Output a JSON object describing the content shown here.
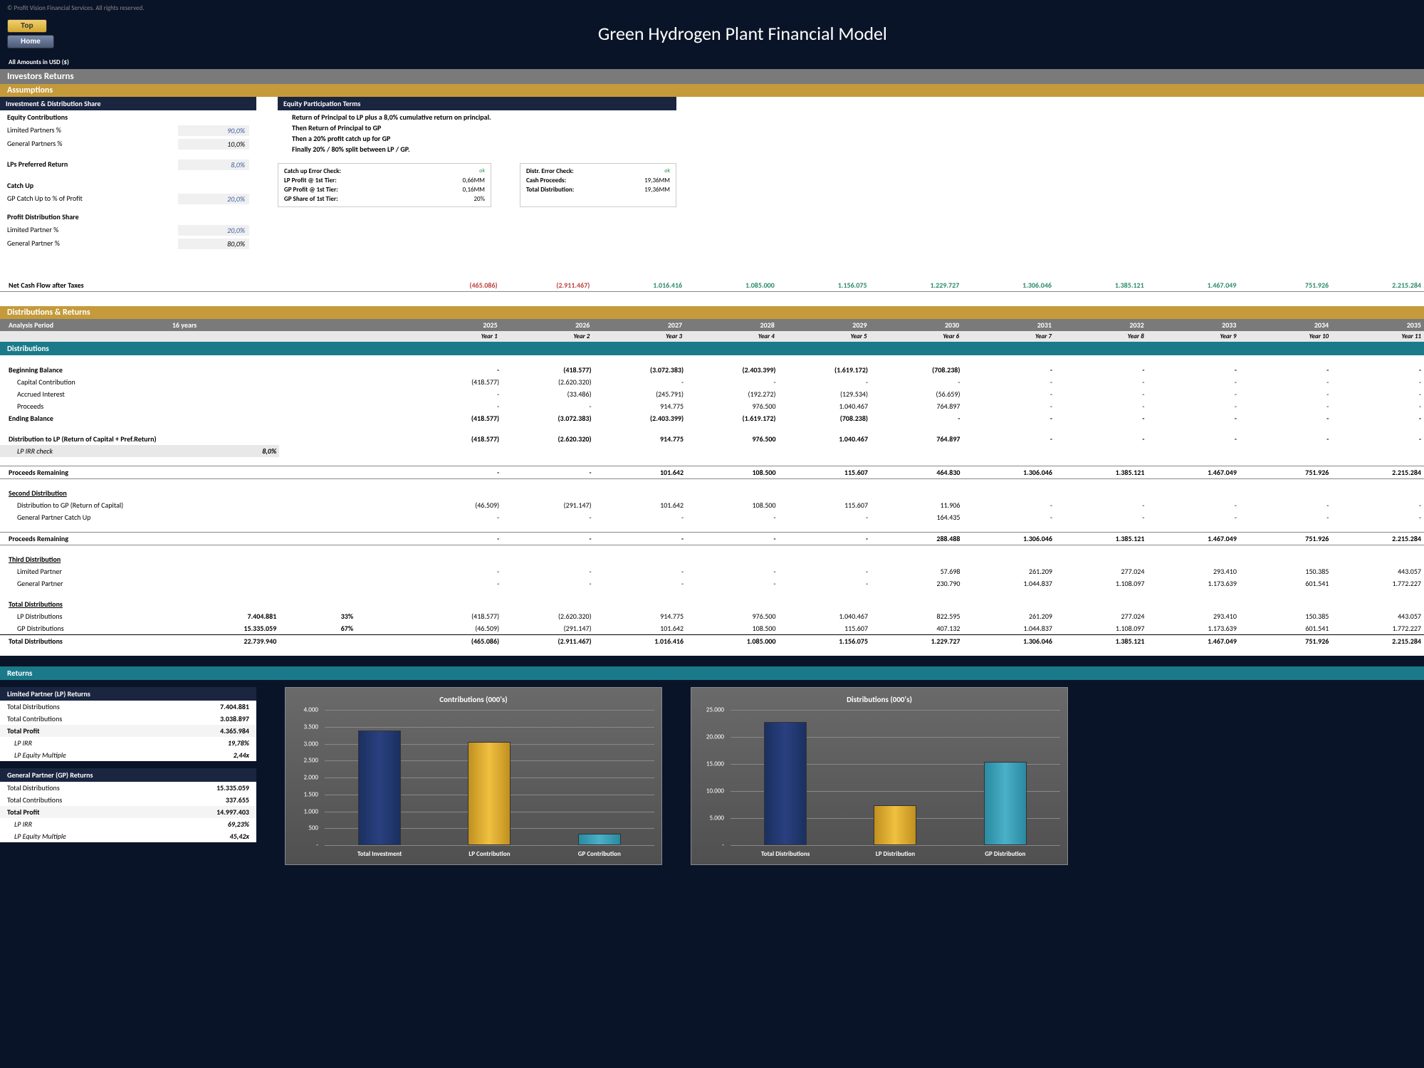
{
  "copyright": "© Profit Vision Financial Services. All rights reserved.",
  "nav": {
    "top": "Top",
    "home": "Home"
  },
  "title": "Green Hydrogen Plant Financial Model",
  "amounts_label": "All Amounts in  USD ($)",
  "section_investors": "Investors Returns",
  "section_assumptions": "Assumptions",
  "inv_dist_share": "Investment & Distribution Share",
  "equity_contrib_head": "Equity Contributions",
  "lp_pct_label": "Limited Partners %",
  "lp_pct_val": "90,0%",
  "gp_pct_label": "General Partners %",
  "gp_pct_val": "10,0%",
  "lp_pref_label": "LPs Preferred Return",
  "lp_pref_val": "8,0%",
  "catchup_head": "Catch Up",
  "gp_catchup_label": "GP Catch Up to % of Profit",
  "gp_catchup_val": "20,0%",
  "profit_dist_head": "Profit Distribution Share",
  "lp_share_label": "Limited Partner %",
  "lp_share_val": "20,0%",
  "gp_share_label": "General Partner %",
  "gp_share_val": "80,0%",
  "equity_terms_head": "Equity Participation Terms",
  "term1": "Return of Principal to LP plus a 8,0% cumulative return on principal.",
  "term2": "Then Return of Principal to GP",
  "term3": "Then a 20% profit catch up for GP",
  "term4": "Finally 20% / 80% split between LP / GP.",
  "check1_head": "Catch up Error Check:",
  "check1_ok": "ok",
  "check1_r1l": "LP Profit @ 1st Tier:",
  "check1_r1v": "0,66MM",
  "check1_r2l": "GP Profit @ 1st Tier:",
  "check1_r2v": "0,16MM",
  "check1_r3l": "GP Share of 1st Tier:",
  "check1_r3v": "20%",
  "check2_head": "Distr. Error Check:",
  "check2_ok": "ok",
  "check2_r1l": "Cash Proceeds:",
  "check2_r1v": "19,36MM",
  "check2_r2l": "Total Distribution:",
  "check2_r2v": "19,36MM",
  "ncf_label": "Net Cash Flow after Taxes",
  "ncf": [
    "(465.086)",
    "(2.911.467)",
    "1.016.416",
    "1.085.000",
    "1.156.075",
    "1.229.727",
    "1.306.046",
    "1.385.121",
    "1.467.049",
    "751.926",
    "2.215.284"
  ],
  "ncf_neg": [
    true,
    true,
    false,
    false,
    false,
    false,
    false,
    false,
    false,
    false,
    false
  ],
  "dist_returns_head": "Distributions & Returns",
  "analysis_period_label": "Analysis Period",
  "analysis_period_val": "16 years",
  "years": [
    "2025",
    "2026",
    "2027",
    "2028",
    "2029",
    "2030",
    "2031",
    "2032",
    "2033",
    "2034",
    "2035"
  ],
  "year_labels": [
    "Year 1",
    "Year 2",
    "Year 3",
    "Year 4",
    "Year 5",
    "Year 6",
    "Year 7",
    "Year 8",
    "Year 9",
    "Year 10",
    "Year 11"
  ],
  "distributions_head": "Distributions",
  "beg_bal_label": "Beginning Balance",
  "beg_bal": [
    "-",
    "(418.577)",
    "(3.072.383)",
    "(2.403.399)",
    "(1.619.172)",
    "(708.238)",
    "-",
    "-",
    "-",
    "-",
    "-"
  ],
  "cap_contrib_label": "Capital Contribution",
  "cap_contrib": [
    "(418.577)",
    "(2.620.320)",
    "-",
    "-",
    "-",
    "-",
    "-",
    "-",
    "-",
    "-",
    "-"
  ],
  "accrued_label": "Accrued Interest",
  "accrued": [
    "-",
    "(33.486)",
    "(245.791)",
    "(192.272)",
    "(129.534)",
    "(56.659)",
    "-",
    "-",
    "-",
    "-",
    "-"
  ],
  "proceeds_label": "Proceeds",
  "proceeds": [
    "-",
    "-",
    "914.775",
    "976.500",
    "1.040.467",
    "764.897",
    "-",
    "-",
    "-",
    "-",
    "-"
  ],
  "end_bal_label": "Ending Balance",
  "end_bal": [
    "(418.577)",
    "(3.072.383)",
    "(2.403.399)",
    "(1.619.172)",
    "(708.238)",
    "-",
    "-",
    "-",
    "-",
    "-",
    "-"
  ],
  "dist_lp_label": "Distribution to LP (Return of Capital + Pref.Return)",
  "dist_lp": [
    "(418.577)",
    "(2.620.320)",
    "914.775",
    "976.500",
    "1.040.467",
    "764.897",
    "-",
    "-",
    "-",
    "-",
    "-"
  ],
  "lp_irr_check_label": "LP IRR check",
  "lp_irr_check_val": "8,0%",
  "proc_rem1_label": "Proceeds Remaining",
  "proc_rem1": [
    "-",
    "-",
    "101.642",
    "108.500",
    "115.607",
    "464.830",
    "1.306.046",
    "1.385.121",
    "1.467.049",
    "751.926",
    "2.215.284"
  ],
  "second_dist_label": "Second Distribution",
  "dist_gp_label": "Distribution to GP (Return of Capital)",
  "dist_gp": [
    "(46.509)",
    "(291.147)",
    "101.642",
    "108.500",
    "115.607",
    "11.906",
    "-",
    "-",
    "-",
    "-",
    "-"
  ],
  "gp_catchup_row_label": "General Partner Catch Up",
  "gp_catchup_row": [
    "-",
    "-",
    "-",
    "-",
    "-",
    "164.435",
    "-",
    "-",
    "-",
    "-",
    "-"
  ],
  "proc_rem2_label": "Proceeds Remaining",
  "proc_rem2": [
    "-",
    "-",
    "-",
    "-",
    "-",
    "288.488",
    "1.306.046",
    "1.385.121",
    "1.467.049",
    "751.926",
    "2.215.284"
  ],
  "third_dist_label": "Third Distribution",
  "third_lp_label": "Limited Partner",
  "third_lp": [
    "-",
    "-",
    "-",
    "-",
    "-",
    "57.698",
    "261.209",
    "277.024",
    "293.410",
    "150.385",
    "443.057"
  ],
  "third_gp_label": "General Partner",
  "third_gp": [
    "-",
    "-",
    "-",
    "-",
    "-",
    "230.790",
    "1.044.837",
    "1.108.097",
    "1.173.639",
    "601.541",
    "1.772.227"
  ],
  "tot_dist_label": "Total Distributions",
  "lp_dist_label": "LP Distributions",
  "lp_dist_total": "7.404.881",
  "lp_dist_pct": "33%",
  "lp_dist": [
    "(418.577)",
    "(2.620.320)",
    "914.775",
    "976.500",
    "1.040.467",
    "822.595",
    "261.209",
    "277.024",
    "293.410",
    "150.385",
    "443.057"
  ],
  "gp_dist_label": "GP Distributions",
  "gp_dist_total": "15.335.059",
  "gp_dist_pct": "67%",
  "gp_dist": [
    "(46.509)",
    "(291.147)",
    "101.642",
    "108.500",
    "115.607",
    "407.132",
    "1.044.837",
    "1.108.097",
    "1.173.639",
    "601.541",
    "1.772.227"
  ],
  "grand_total_label": "Total Distributions",
  "grand_total": "22.739.940",
  "grand_total_row": [
    "(465.086)",
    "(2.911.467)",
    "1.016.416",
    "1.085.000",
    "1.156.075",
    "1.229.727",
    "1.306.046",
    "1.385.121",
    "1.467.049",
    "751.926",
    "2.215.284"
  ],
  "returns_head": "Returns",
  "lp_returns_head": "Limited Partner (LP) Returns",
  "lp_ret": {
    "td_l": "Total Distributions",
    "td_v": "7.404.881",
    "tc_l": "Total Contributions",
    "tc_v": "3.038.897",
    "tp_l": "Total Profit",
    "tp_v": "4.365.984",
    "irr_l": "LP IRR",
    "irr_v": "19,78%",
    "em_l": "LP Equity Multiple",
    "em_v": "2,44x"
  },
  "gp_returns_head": "General Partner (GP) Returns",
  "gp_ret": {
    "td_l": "Total Distributions",
    "td_v": "15.335.059",
    "tc_l": "Total Contributions",
    "tc_v": "337.655",
    "tp_l": "Total Profit",
    "tp_v": "14.997.403",
    "irr_l": "LP IRR",
    "irr_v": "69,23%",
    "em_l": "LP Equity Multiple",
    "em_v": "45,42x"
  },
  "chart1": {
    "title": "Contributions (000's)",
    "ymax": 4000,
    "yticks": [
      "4.000",
      "3.500",
      "3.000",
      "2.500",
      "2.000",
      "1.500",
      "1.000",
      "500",
      "-"
    ],
    "bars": [
      {
        "label": "Total Investment",
        "value": 3400,
        "color": "navy"
      },
      {
        "label": "LP Contribution",
        "value": 3050,
        "color": "gold"
      },
      {
        "label": "GP Contribution",
        "value": 340,
        "color": "teal"
      }
    ]
  },
  "chart2": {
    "title": "Distributions (000's)",
    "ymax": 25000,
    "yticks": [
      "25.000",
      "20.000",
      "15.000",
      "10.000",
      "5.000",
      "-"
    ],
    "bars": [
      {
        "label": "Total Distributions",
        "value": 22740,
        "color": "navy"
      },
      {
        "label": "LP Distribution",
        "value": 7405,
        "color": "gold"
      },
      {
        "label": "GP Distribution",
        "value": 15335,
        "color": "teal"
      }
    ]
  }
}
